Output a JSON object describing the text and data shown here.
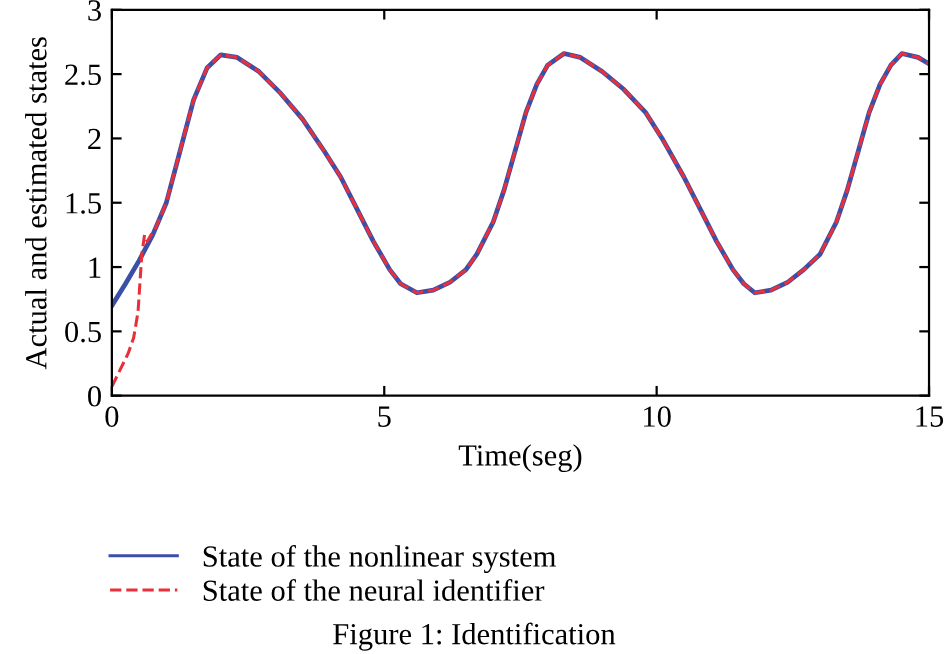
{
  "chart_data": {
    "type": "line",
    "xlabel": "Time(seg)",
    "ylabel": "Actual and estimated states",
    "xlim": [
      0,
      15
    ],
    "ylim": [
      0,
      3
    ],
    "xticks": [
      0,
      5,
      10,
      15
    ],
    "yticks": [
      0,
      0.5,
      1,
      1.5,
      2,
      2.5,
      3
    ],
    "grid": false,
    "legend": "bottom",
    "annotations": [
      "Figure 1: Identification"
    ],
    "series": [
      {
        "name": "State of the nonlinear system",
        "color": "#3a4fa8",
        "line_style": "solid",
        "x": [
          0,
          0.25,
          0.5,
          0.75,
          1.0,
          1.25,
          1.5,
          1.75,
          2.0,
          2.3,
          2.7,
          3.1,
          3.5,
          3.9,
          4.2,
          4.5,
          4.8,
          5.1,
          5.3,
          5.6,
          5.9,
          6.2,
          6.5,
          6.7,
          7.0,
          7.2,
          7.4,
          7.6,
          7.8,
          8.0,
          8.3,
          8.6,
          9.0,
          9.4,
          9.8,
          10.1,
          10.5,
          10.8,
          11.1,
          11.4,
          11.6,
          11.8,
          12.1,
          12.4,
          12.7,
          13.0,
          13.3,
          13.5,
          13.7,
          13.9,
          14.1,
          14.3,
          14.5,
          14.8,
          15.0
        ],
        "values": [
          0.7,
          0.87,
          1.05,
          1.25,
          1.5,
          1.9,
          2.3,
          2.55,
          2.65,
          2.63,
          2.52,
          2.35,
          2.15,
          1.9,
          1.7,
          1.45,
          1.2,
          0.98,
          0.87,
          0.8,
          0.82,
          0.88,
          0.98,
          1.1,
          1.35,
          1.6,
          1.9,
          2.2,
          2.42,
          2.57,
          2.66,
          2.63,
          2.52,
          2.38,
          2.2,
          2.0,
          1.7,
          1.45,
          1.2,
          0.98,
          0.87,
          0.8,
          0.82,
          0.88,
          0.98,
          1.1,
          1.35,
          1.6,
          1.9,
          2.2,
          2.42,
          2.57,
          2.66,
          2.63,
          2.58
        ]
      },
      {
        "name": "State of the neural identifier",
        "color": "#e8303a",
        "line_style": "dashed",
        "x": [
          0,
          0.15,
          0.3,
          0.4,
          0.48,
          0.55,
          0.6,
          0.65,
          0.72,
          0.8,
          1.0,
          1.25,
          1.5,
          1.75,
          2.0,
          2.3,
          2.7,
          3.1,
          3.5,
          3.9,
          4.2,
          4.5,
          4.8,
          5.1,
          5.3,
          5.6,
          5.9,
          6.2,
          6.5,
          6.7,
          7.0,
          7.2,
          7.4,
          7.6,
          7.8,
          8.0,
          8.3,
          8.6,
          9.0,
          9.4,
          9.8,
          10.1,
          10.5,
          10.8,
          11.1,
          11.4,
          11.6,
          11.8,
          12.1,
          12.4,
          12.7,
          13.0,
          13.3,
          13.5,
          13.7,
          13.9,
          14.1,
          14.3,
          14.5,
          14.8,
          15.0
        ],
        "values": [
          0.07,
          0.2,
          0.33,
          0.45,
          0.65,
          1.1,
          1.25,
          1.2,
          1.25,
          1.3,
          1.5,
          1.9,
          2.3,
          2.55,
          2.65,
          2.63,
          2.52,
          2.35,
          2.15,
          1.9,
          1.7,
          1.45,
          1.2,
          0.98,
          0.87,
          0.8,
          0.82,
          0.88,
          0.98,
          1.1,
          1.35,
          1.6,
          1.9,
          2.2,
          2.42,
          2.57,
          2.66,
          2.63,
          2.52,
          2.38,
          2.2,
          2.0,
          1.7,
          1.45,
          1.2,
          0.98,
          0.87,
          0.8,
          0.82,
          0.88,
          0.98,
          1.1,
          1.35,
          1.6,
          1.9,
          2.2,
          2.42,
          2.57,
          2.66,
          2.63,
          2.58
        ]
      }
    ]
  }
}
